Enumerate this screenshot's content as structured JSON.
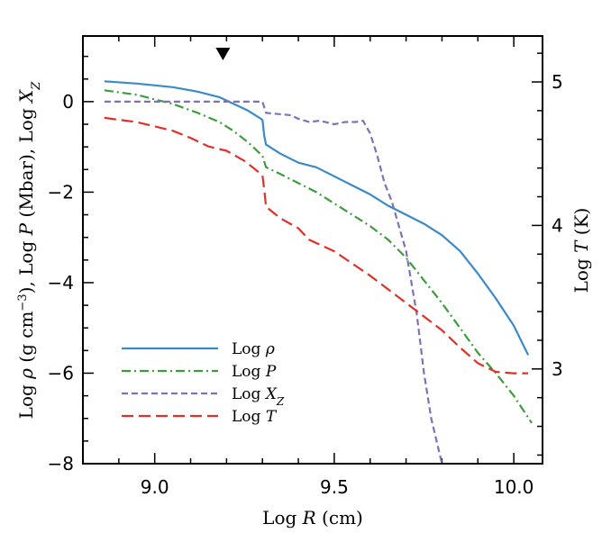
{
  "chart_data": {
    "type": "line",
    "x_axis": {
      "label_main": "Log ",
      "label_var": "R",
      "label_unit": " (cm)",
      "range": [
        8.8,
        10.08
      ],
      "ticks": [
        9.0,
        9.5,
        10.0
      ],
      "tick_labels": [
        "9.0",
        "9.5",
        "10.0"
      ]
    },
    "y_axis_left": {
      "label_parts": [
        "Log ",
        "ρ",
        " (g cm",
        "−3",
        "),  Log ",
        "P",
        " (Mbar),  Log ",
        "X",
        "Z"
      ],
      "range": [
        -8,
        1.45
      ],
      "ticks": [
        -8,
        -6,
        -4,
        -2,
        0
      ],
      "tick_labels": [
        "−8",
        "−6",
        "−4",
        "−2",
        "0"
      ]
    },
    "y_axis_right": {
      "label_main": "Log ",
      "label_var": "T",
      "label_unit": " (K)",
      "range": [
        2.34,
        5.32
      ],
      "ticks": [
        3,
        4,
        5
      ],
      "tick_labels": [
        "3",
        "4",
        "5"
      ]
    },
    "marker": {
      "x": 9.19,
      "shape": "triangle-down"
    },
    "legend_placement": "lower-left",
    "series": [
      {
        "name_main": "Log ",
        "name_var": "ρ",
        "name_sub": "",
        "color": "#3a89c9",
        "dash": "",
        "axis": "left",
        "x": [
          8.86,
          8.95,
          9.05,
          9.12,
          9.18,
          9.22,
          9.26,
          9.3,
          9.305,
          9.31,
          9.35,
          9.4,
          9.45,
          9.5,
          9.55,
          9.6,
          9.65,
          9.7,
          9.75,
          9.8,
          9.85,
          9.9,
          9.95,
          10.0,
          10.04
        ],
        "y": [
          0.45,
          0.4,
          0.32,
          0.22,
          0.1,
          -0.05,
          -0.2,
          -0.4,
          -0.75,
          -0.95,
          -1.15,
          -1.35,
          -1.45,
          -1.65,
          -1.85,
          -2.05,
          -2.3,
          -2.5,
          -2.7,
          -2.95,
          -3.3,
          -3.8,
          -4.35,
          -4.95,
          -5.6
        ]
      },
      {
        "name_main": "Log ",
        "name_var": "P",
        "name_sub": "",
        "color": "#3d9d3d",
        "dash": "10,4,2,4",
        "axis": "left",
        "x": [
          8.86,
          8.95,
          9.05,
          9.12,
          9.18,
          9.22,
          9.26,
          9.3,
          9.31,
          9.35,
          9.4,
          9.45,
          9.5,
          9.55,
          9.6,
          9.65,
          9.7,
          9.75,
          9.8,
          9.85,
          9.9,
          9.95,
          10.0,
          10.05
        ],
        "y": [
          0.25,
          0.15,
          -0.05,
          -0.25,
          -0.45,
          -0.65,
          -0.9,
          -1.2,
          -1.45,
          -1.6,
          -1.8,
          -2.0,
          -2.25,
          -2.5,
          -2.75,
          -3.05,
          -3.45,
          -3.95,
          -4.45,
          -5.0,
          -5.55,
          -6.0,
          -6.5,
          -7.1
        ]
      },
      {
        "name_main": "Log ",
        "name_var": "X",
        "name_sub": "Z",
        "color": "#8070b8",
        "dash": "7,4",
        "axis": "left",
        "x": [
          8.86,
          9.0,
          9.2,
          9.3,
          9.31,
          9.38,
          9.4,
          9.43,
          9.46,
          9.5,
          9.53,
          9.56,
          9.58,
          9.6,
          9.62,
          9.64,
          9.66,
          9.7,
          9.73,
          9.75,
          9.77,
          9.8
        ],
        "y": [
          0.0,
          0.0,
          0.0,
          0.0,
          -0.25,
          -0.3,
          -0.38,
          -0.45,
          -0.42,
          -0.5,
          -0.45,
          -0.45,
          -0.42,
          -0.7,
          -1.2,
          -1.8,
          -2.2,
          -3.3,
          -4.7,
          -6.0,
          -7.0,
          -8.0
        ]
      },
      {
        "name_main": "Log ",
        "name_var": "T",
        "name_sub": "",
        "color": "#e0302a",
        "dash": "13,6",
        "axis": "right",
        "x": [
          8.86,
          8.95,
          9.05,
          9.1,
          9.15,
          9.2,
          9.25,
          9.3,
          9.305,
          9.31,
          9.35,
          9.4,
          9.43,
          9.5,
          9.6,
          9.7,
          9.8,
          9.85,
          9.9,
          9.95,
          10.0,
          10.04
        ],
        "y": [
          4.75,
          4.72,
          4.66,
          4.61,
          4.55,
          4.52,
          4.45,
          4.35,
          4.25,
          4.13,
          4.05,
          3.98,
          3.9,
          3.82,
          3.65,
          3.46,
          3.27,
          3.15,
          3.04,
          2.98,
          2.97,
          2.97
        ]
      }
    ]
  }
}
